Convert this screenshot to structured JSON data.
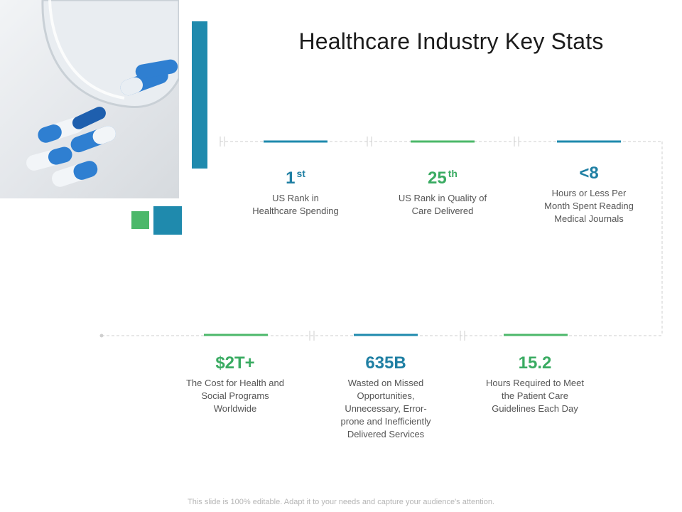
{
  "slide": {
    "title": "Healthcare Industry Key Stats",
    "footer": "This slide is 100% editable. Adapt it to your needs and capture your audience's attention."
  },
  "image": {
    "icon": "pills-photo"
  },
  "colors": {
    "blue": "#1f8aad",
    "green": "#4cb86a",
    "text": "#555555"
  },
  "stats": [
    {
      "value": "1",
      "suffix": "st",
      "label_lines": [
        "US Rank in",
        "Healthcare Spending"
      ],
      "color": "blue"
    },
    {
      "value": "25",
      "suffix": "th",
      "label_lines": [
        "US Rank in Quality of",
        "Care Delivered"
      ],
      "color": "green"
    },
    {
      "value": "<8",
      "suffix": "",
      "label_lines": [
        "Hours or Less Per",
        "Month Spent Reading",
        "Medical Journals"
      ],
      "color": "blue"
    },
    {
      "value": "$2T+",
      "suffix": "",
      "label_lines": [
        "The Cost for Health and",
        "Social Programs",
        "Worldwide"
      ],
      "color": "green"
    },
    {
      "value": "635B",
      "suffix": "",
      "label_lines": [
        "Wasted on Missed",
        "Opportunities,",
        "Unnecessary, Error-",
        "prone and Inefficiently",
        "Delivered Services"
      ],
      "color": "blue"
    },
    {
      "value": "15.2",
      "suffix": "",
      "label_lines": [
        "Hours Required to Meet",
        "the Patient Care",
        "Guidelines Each Day"
      ],
      "color": "green"
    }
  ]
}
